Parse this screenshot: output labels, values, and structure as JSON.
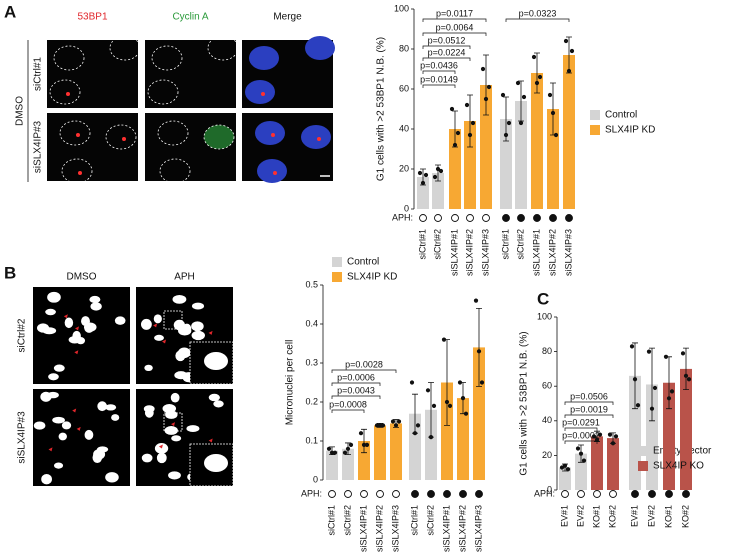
{
  "panels": {
    "A": {
      "label": "A",
      "columns": [
        "53BP1",
        "Cyclin A",
        "Merge"
      ],
      "rows": [
        "siCtrl#1",
        "siSLX4IP#3"
      ],
      "group": "DMSO"
    },
    "B": {
      "label": "B",
      "columns": [
        "DMSO",
        "APH"
      ],
      "rows": [
        "siCtrl#2",
        "siSLX4IP#3"
      ]
    },
    "C": {
      "label": "C"
    }
  },
  "chart_data": [
    {
      "type": "bar",
      "y_label": "G1 cells with >2 53BP1 N.B. (%)",
      "categories": [
        "siCtrl#1",
        "siCtrl#2",
        "siSLX4IP#1",
        "siSLX4IP#2",
        "siSLX4IP#3",
        "siCtrl#1",
        "siCtrl#2",
        "siSLX4IP#1",
        "siSLX4IP#2",
        "siSLX4IP#3"
      ],
      "aph_label": "APH:",
      "aph": [
        false,
        false,
        false,
        false,
        false,
        true,
        true,
        true,
        true,
        true
      ],
      "series": [
        {
          "name": "Control",
          "color": "#d4d4d4",
          "values": [
            16,
            18,
            null,
            null,
            null,
            45,
            54,
            null,
            null,
            null
          ],
          "errors": [
            4,
            4,
            null,
            null,
            null,
            11,
            10,
            null,
            null,
            null
          ],
          "points": [
            [
              18,
              13,
              17
            ],
            [
              16,
              20,
              19
            ],
            null,
            null,
            null,
            [
              57,
              37,
              43
            ],
            [
              63,
              43,
              56
            ],
            null,
            null,
            null
          ]
        },
        {
          "name": "SLX4IP KD",
          "color": "#f7a833",
          "values": [
            null,
            null,
            40,
            44,
            62,
            null,
            null,
            68,
            50,
            77
          ],
          "errors": [
            null,
            null,
            9,
            13,
            15,
            null,
            null,
            10,
            13,
            9
          ],
          "points": [
            null,
            null,
            [
              50,
              32,
              38
            ],
            [
              52,
              37,
              43
            ],
            [
              70,
              55,
              61
            ],
            null,
            null,
            [
              76,
              63,
              66
            ],
            [
              57,
              48,
              37
            ],
            [
              84,
              69,
              79
            ]
          ]
        }
      ],
      "ylim": [
        0,
        100
      ],
      "yticks": [
        0,
        20,
        40,
        60,
        80,
        100
      ],
      "annotations": [
        "p=0.0117",
        "p=0.0064",
        "p=0.0512",
        "p=0.0224",
        "p=0.0436",
        "p=0.0149",
        "p=0.0323"
      ]
    },
    {
      "type": "bar",
      "y_label": "Micronuclei per cell",
      "categories": [
        "siCtrl#1",
        "siCtrl#2",
        "siSLX4IP#1",
        "siSLX4IP#2",
        "siSLX4IP#3",
        "siCtrl#1",
        "siCtrl#2",
        "siSLX4IP#1",
        "siSLX4IP#2",
        "siSLX4IP#3"
      ],
      "aph_label": "APH:",
      "aph": [
        false,
        false,
        false,
        false,
        false,
        true,
        true,
        true,
        true,
        true
      ],
      "series": [
        {
          "name": "Control",
          "color": "#d4d4d4",
          "values": [
            0.075,
            0.08,
            null,
            null,
            null,
            0.17,
            0.18,
            null,
            null,
            null
          ],
          "errors": [
            0.01,
            0.015,
            null,
            null,
            null,
            0.05,
            0.07,
            null,
            null,
            null
          ],
          "points": [
            [
              0.08,
              0.07,
              0.07
            ],
            [
              0.07,
              0.08,
              0.09
            ],
            null,
            null,
            null,
            [
              0.25,
              0.12,
              0.14
            ],
            [
              0.23,
              0.11,
              0.19
            ],
            null,
            null,
            null
          ]
        },
        {
          "name": "SLX4IP KD",
          "color": "#f7a833",
          "values": [
            null,
            null,
            0.1,
            0.14,
            0.145,
            null,
            null,
            0.25,
            0.21,
            0.34
          ],
          "errors": [
            null,
            null,
            0.03,
            0.005,
            0.01,
            null,
            null,
            0.11,
            0.04,
            0.1
          ],
          "points": [
            null,
            null,
            [
              0.12,
              0.09,
              0.09
            ],
            [
              0.14,
              0.14,
              0.14
            ],
            [
              0.15,
              0.14,
              0.15
            ],
            null,
            null,
            [
              0.36,
              0.2,
              0.19
            ],
            [
              0.25,
              0.21,
              0.17
            ],
            [
              0.46,
              0.33,
              0.25
            ]
          ]
        }
      ],
      "ylim": [
        0,
        0.5
      ],
      "yticks": [
        0,
        0.1,
        0.2,
        0.3,
        0.4,
        0.5
      ],
      "annotations": [
        "p=0.0028",
        "p=0.0006",
        "p=0.0043",
        "p=0.0008"
      ]
    },
    {
      "type": "bar",
      "y_label": "G1 cells with >2 53BP1 N.B. (%)",
      "categories": [
        "EV#1",
        "EV#2",
        "KO#1",
        "KO#2",
        "EV#1",
        "EV#2",
        "KO#1",
        "KO#2"
      ],
      "aph_label": "APH:",
      "aph": [
        false,
        false,
        false,
        false,
        true,
        true,
        true,
        true
      ],
      "series": [
        {
          "name": "Empty vector",
          "color": "#d4d4d4",
          "values": [
            13,
            21,
            null,
            null,
            66,
            61,
            null,
            null
          ],
          "errors": [
            2,
            5,
            null,
            null,
            19,
            21,
            null,
            null
          ],
          "points": [
            [
              13,
              14,
              12
            ],
            [
              24,
              21,
              17
            ],
            null,
            null,
            [
              83,
              64,
              49
            ],
            [
              80,
              47,
              59
            ],
            null,
            null
          ]
        },
        {
          "name": "SLX4IP KO",
          "color": "#b9534a",
          "values": [
            null,
            null,
            31,
            30,
            null,
            null,
            62,
            70
          ],
          "errors": [
            null,
            null,
            3,
            3,
            null,
            null,
            15,
            12
          ],
          "points": [
            null,
            null,
            [
              31,
              29,
              32
            ],
            [
              32,
              27,
              31
            ],
            null,
            null,
            [
              77,
              53,
              57
            ],
            [
              79,
              66,
              64
            ]
          ]
        }
      ],
      "ylim": [
        0,
        100
      ],
      "yticks": [
        0,
        20,
        40,
        60,
        80,
        100
      ],
      "annotations": [
        "p=0.0506",
        "p=0.0019",
        "p=0.0291",
        "p=0.0002"
      ]
    }
  ]
}
